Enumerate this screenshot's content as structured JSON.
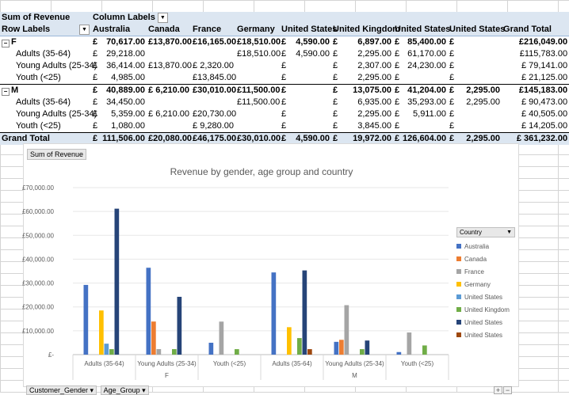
{
  "pivot": {
    "title_measure": "Sum of Revenue",
    "column_labels": "Column Labels",
    "row_labels": "Row Labels",
    "countries": [
      "Australia",
      "Canada",
      "France",
      "Germany",
      "United  States",
      "United Kingdom",
      "United States",
      "United States"
    ],
    "grand_total_label": "Grand Total",
    "currency": "£",
    "rows": [
      {
        "type": "group",
        "label": "F",
        "cells": [
          "70,617.00",
          "£13,870.00",
          "£16,165.00",
          "£18,510.00",
          "4,590.00",
          "6,897.00",
          "85,400.00",
          ""
        ],
        "total": "£216,049.00"
      },
      {
        "type": "item",
        "label": "Adults (35-64)",
        "cells": [
          "29,218.00",
          "",
          "",
          "£18,510.00",
          "4,590.00",
          "2,295.00",
          "61,170.00",
          ""
        ],
        "total": "£115,783.00"
      },
      {
        "type": "item",
        "label": "Young Adults (25-34)",
        "cells": [
          "36,414.00",
          "£13,870.00",
          "£  2,320.00",
          "",
          "",
          "2,307.00",
          "24,230.00",
          ""
        ],
        "total": "£  79,141.00"
      },
      {
        "type": "item",
        "label": "Youth (<25)",
        "cells": [
          "4,985.00",
          "",
          "£13,845.00",
          "",
          "",
          "2,295.00",
          "",
          ""
        ],
        "total": "£  21,125.00"
      },
      {
        "type": "group",
        "label": "M",
        "cells": [
          "40,889.00",
          "£  6,210.00",
          "£30,010.00",
          "£11,500.00",
          "",
          "13,075.00",
          "41,204.00",
          "2,295.00"
        ],
        "total": "£145,183.00"
      },
      {
        "type": "item",
        "label": "Adults (35-64)",
        "cells": [
          "34,450.00",
          "",
          "",
          "£11,500.00",
          "",
          "6,935.00",
          "35,293.00",
          "2,295.00"
        ],
        "total": "£  90,473.00"
      },
      {
        "type": "item",
        "label": "Young Adults (25-34)",
        "cells": [
          "5,359.00",
          "£  6,210.00",
          "£20,730.00",
          "",
          "",
          "2,295.00",
          "5,911.00",
          ""
        ],
        "total": "£  40,505.00"
      },
      {
        "type": "item",
        "label": "Youth (<25)",
        "cells": [
          "1,080.00",
          "",
          "£  9,280.00",
          "",
          "",
          "3,845.00",
          "",
          ""
        ],
        "total": "£  14,205.00"
      }
    ],
    "grand_total_row": {
      "label": "Grand Total",
      "cells": [
        "111,506.00",
        "£20,080.00",
        "£46,175.00",
        "£30,010.00",
        "4,590.00",
        "19,972.00",
        "126,604.00",
        "2,295.00"
      ],
      "total": "£ 361,232.00"
    }
  },
  "chart_field_button": "Sum of Revenue",
  "bottom_buttons": [
    "Customer_Gender",
    "Age_Group"
  ],
  "legend_title": "Country",
  "colors": {
    "Australia": "#4472c4",
    "Canada": "#ed7d31",
    "France": "#a5a5a5",
    "Germany": "#ffc000",
    "US1": "#5b9bd5",
    "UK": "#70ad47",
    "US2": "#264478",
    "US3": "#9e480e"
  },
  "chart_data": {
    "type": "bar",
    "title": "Revenue by gender, age group and country",
    "categories": [
      "Adults (35-64)",
      "Young Adults (25-34)",
      "Youth (<25)",
      "Adults (35-64)",
      "Young Adults (25-34)",
      "Youth (<25)"
    ],
    "groups": [
      {
        "label": "F",
        "span": [
          0,
          2
        ]
      },
      {
        "label": "M",
        "span": [
          3,
          5
        ]
      }
    ],
    "ylim": [
      0,
      70000
    ],
    "yticks": [
      "£-",
      "£10,000.00",
      "£20,000.00",
      "£30,000.00",
      "£40,000.00",
      "£50,000.00",
      "£60,000.00",
      "£70,000.00"
    ],
    "series": [
      {
        "name": "Australia",
        "color": "#4472c4",
        "values": [
          29218,
          36414,
          4985,
          34450,
          5359,
          1080
        ]
      },
      {
        "name": "Canada",
        "color": "#ed7d31",
        "values": [
          0,
          13870,
          0,
          0,
          6210,
          0
        ]
      },
      {
        "name": "France",
        "color": "#a5a5a5",
        "values": [
          0,
          2320,
          13845,
          0,
          20730,
          9280
        ]
      },
      {
        "name": "Germany",
        "color": "#ffc000",
        "values": [
          18510,
          0,
          0,
          11500,
          0,
          0
        ]
      },
      {
        "name": "United  States",
        "color": "#5b9bd5",
        "values": [
          4590,
          0,
          0,
          0,
          0,
          0
        ]
      },
      {
        "name": "United Kingdom",
        "color": "#70ad47",
        "values": [
          2295,
          2307,
          2295,
          6935,
          2295,
          3845
        ]
      },
      {
        "name": "United States",
        "color": "#264478",
        "values": [
          61170,
          24230,
          0,
          35293,
          5911,
          0
        ]
      },
      {
        "name": "United States",
        "color": "#9e480e",
        "values": [
          0,
          0,
          0,
          2295,
          0,
          0
        ]
      }
    ]
  }
}
